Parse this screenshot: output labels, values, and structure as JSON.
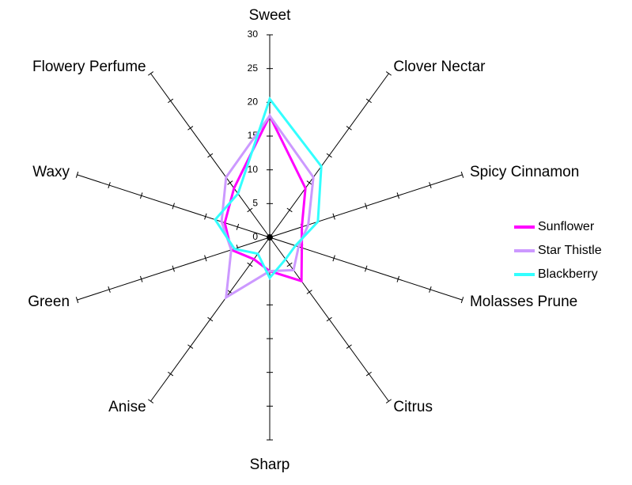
{
  "chart_data": {
    "type": "radar",
    "categories": [
      "Sweet",
      "Clover Nectar",
      "Spicy Cinnamon",
      "Molasses Prune",
      "Citrus",
      "Sharp",
      "Anise",
      "Green",
      "Waxy",
      "Flowery Perfume"
    ],
    "series": [
      {
        "name": "Sunflower",
        "color": "#ff00ff",
        "values": [
          18,
          9,
          5,
          5,
          8,
          5,
          4,
          6,
          7,
          9
        ]
      },
      {
        "name": "Star Thistle",
        "color": "#cc99ff",
        "values": [
          18,
          11,
          6,
          4.5,
          6,
          5,
          11,
          6,
          7.5,
          11
        ]
      },
      {
        "name": "Blackberry",
        "color": "#33ffff",
        "values": [
          20.5,
          13,
          7.5,
          4,
          4,
          6,
          3,
          5.5,
          8.5,
          8
        ]
      }
    ],
    "ylim": [
      0,
      30
    ],
    "yticks": [
      0,
      5,
      10,
      15,
      20,
      25,
      30
    ],
    "legend": "right"
  }
}
